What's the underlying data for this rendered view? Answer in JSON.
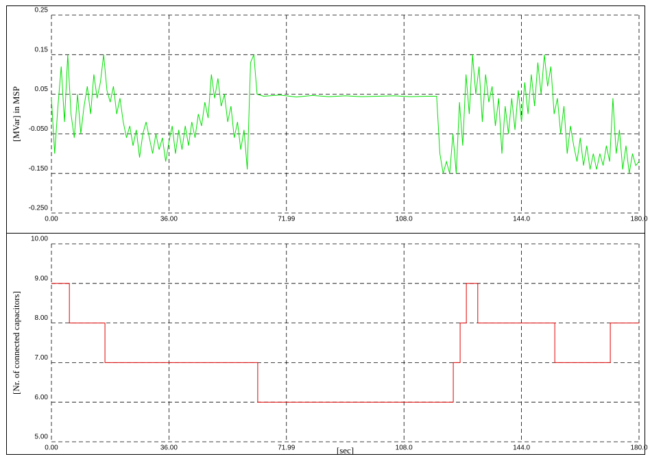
{
  "chart_data": [
    {
      "type": "line",
      "y_label": "[MVar] in  MSP",
      "xlim": [
        0,
        180
      ],
      "xticks": [
        {
          "value": 0,
          "label": "0.00"
        },
        {
          "value": 36,
          "label": "36.00"
        },
        71.99,
        {
          "value": 108,
          "label": "108.0"
        },
        {
          "value": 144,
          "label": "144.0"
        },
        {
          "value": 180,
          "label": "180.0"
        }
      ],
      "ylim": [
        -0.25,
        0.25
      ],
      "yticks": [
        0.25,
        0.15,
        0.05,
        {
          "value": -0.05,
          "label": "-0.050"
        },
        {
          "value": -0.15,
          "label": "-0.150"
        },
        {
          "value": -0.25,
          "label": "-0.250"
        }
      ],
      "grid": true,
      "series": [
        {
          "color": "#00e000",
          "x": [
            0,
            1,
            2,
            3,
            4,
            5,
            6,
            7,
            8,
            9,
            10,
            11,
            12,
            13,
            14,
            15,
            16,
            17,
            18,
            19,
            20,
            21,
            22,
            23,
            24,
            25,
            26,
            27,
            28,
            29,
            30,
            31,
            32,
            33,
            34,
            35,
            36,
            37,
            38,
            39,
            40,
            41,
            42,
            43,
            44,
            45,
            46,
            47,
            48,
            49,
            50,
            51,
            52,
            53,
            54,
            55,
            56,
            57,
            58,
            59,
            60,
            61,
            62,
            63,
            65,
            70,
            75,
            80,
            85,
            90,
            95,
            100,
            105,
            110,
            115,
            118,
            119,
            120,
            121,
            122,
            123,
            124,
            125,
            126,
            127,
            128,
            129,
            130,
            131,
            132,
            133,
            134,
            135,
            136,
            137,
            138,
            139,
            140,
            141,
            142,
            143,
            144,
            145,
            146,
            147,
            148,
            149,
            150,
            151,
            152,
            153,
            154,
            155,
            156,
            157,
            158,
            159,
            160,
            161,
            162,
            163,
            164,
            165,
            166,
            167,
            168,
            169,
            170,
            171,
            172,
            173,
            174,
            175,
            176,
            177,
            178,
            179,
            180
          ],
          "values": [
            0.04,
            -0.1,
            0.02,
            0.12,
            -0.02,
            0.15,
            0.0,
            -0.06,
            0.05,
            -0.05,
            0.02,
            0.07,
            0.0,
            0.1,
            0.04,
            0.08,
            0.15,
            0.06,
            0.03,
            0.07,
            0.0,
            0.04,
            -0.02,
            -0.06,
            -0.03,
            -0.08,
            -0.04,
            -0.11,
            -0.05,
            -0.02,
            -0.06,
            -0.1,
            -0.05,
            -0.09,
            -0.06,
            -0.12,
            -0.07,
            -0.03,
            -0.1,
            -0.04,
            -0.09,
            -0.03,
            -0.08,
            -0.02,
            -0.06,
            0.0,
            -0.03,
            0.03,
            -0.01,
            0.1,
            0.04,
            0.09,
            0.02,
            0.05,
            -0.02,
            0.02,
            -0.06,
            -0.02,
            -0.09,
            -0.04,
            -0.14,
            0.13,
            0.15,
            0.05,
            0.045,
            0.048,
            0.043,
            0.047,
            0.044,
            0.046,
            0.044,
            0.045,
            0.046,
            0.044,
            0.045,
            0.045,
            -0.1,
            -0.15,
            -0.12,
            -0.15,
            -0.05,
            -0.15,
            0.03,
            -0.08,
            0.1,
            0.0,
            0.15,
            0.05,
            0.12,
            -0.02,
            0.1,
            0.03,
            0.07,
            -0.03,
            0.04,
            -0.1,
            0.02,
            -0.05,
            0.04,
            -0.04,
            0.06,
            -0.02,
            0.08,
            0.0,
            0.1,
            0.02,
            0.13,
            0.05,
            0.15,
            0.07,
            0.12,
            0.0,
            0.04,
            -0.05,
            0.02,
            -0.1,
            -0.03,
            -0.08,
            -0.12,
            -0.06,
            -0.13,
            -0.08,
            -0.14,
            -0.1,
            -0.14,
            -0.1,
            -0.13,
            -0.08,
            -0.12,
            0.04,
            -0.1,
            -0.04,
            -0.14,
            -0.08,
            -0.15,
            -0.1,
            -0.13,
            -0.12
          ]
        }
      ]
    },
    {
      "type": "line",
      "y_label": "[Nr. of connected capacitors]",
      "x_label": "[sec]",
      "xlim": [
        0,
        180
      ],
      "xticks": [
        {
          "value": 0,
          "label": "0.00"
        },
        {
          "value": 36,
          "label": "36.00"
        },
        71.99,
        {
          "value": 108,
          "label": "108.0"
        },
        {
          "value": 144,
          "label": "144.0"
        },
        {
          "value": 180,
          "label": "180.0"
        }
      ],
      "ylim": [
        5,
        10
      ],
      "yticks": [
        {
          "value": 10,
          "label": "10.00"
        },
        {
          "value": 9,
          "label": "9.00"
        },
        {
          "value": 8,
          "label": "8.00"
        },
        {
          "value": 7,
          "label": "7.00"
        },
        {
          "value": 6,
          "label": "6.00"
        },
        {
          "value": 5,
          "label": "5.00"
        }
      ],
      "grid": true,
      "series": [
        {
          "color": "#e00000",
          "x": [
            0,
            5.5,
            5.5,
            16.4,
            16.4,
            63.2,
            63.2,
            123.1,
            123.1,
            125.2,
            125.2,
            127.1,
            127.1,
            130.6,
            130.6,
            154.2,
            154.2,
            171.2,
            171.2,
            180
          ],
          "values": [
            9,
            9,
            8,
            8,
            7,
            7,
            6,
            6,
            7,
            7,
            8,
            8,
            9,
            9,
            8,
            8,
            7,
            7,
            8,
            8
          ]
        }
      ]
    }
  ]
}
